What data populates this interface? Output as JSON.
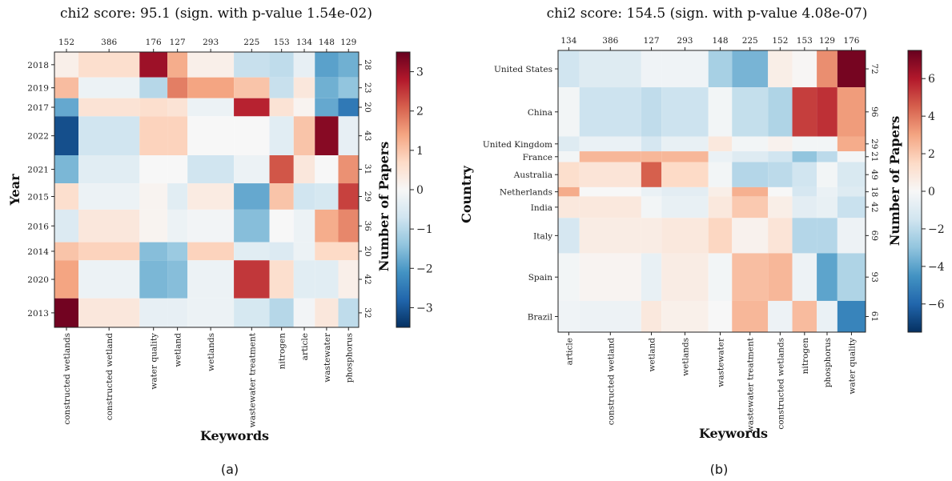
{
  "chart_data": [
    {
      "type": "heatmap",
      "panel": "(a)",
      "title": "chi2 score: 95.1 (sign. with p-value 1.54e-02)",
      "xlabel": "Keywords",
      "ylabel": "Year",
      "cbar_label": "Number of Papers",
      "columns": [
        "constructed wetlands",
        "constructed wetland",
        "water quality",
        "wetland",
        "wetlands",
        "wastewater treatment",
        "nitrogen",
        "article",
        "wastewater",
        "phosphorus"
      ],
      "column_counts": [
        152,
        386,
        176,
        127,
        293,
        225,
        153,
        134,
        148,
        129
      ],
      "rows": [
        "2018",
        "2019",
        "2017",
        "2022",
        "2021",
        "2015",
        "2016",
        "2014",
        "2020",
        "2013"
      ],
      "row_counts": [
        28,
        23,
        20,
        43,
        31,
        29,
        36,
        20,
        42,
        32
      ],
      "colorbar": {
        "min": -3.5,
        "max": 3.5,
        "ticks": [
          -3,
          -2,
          -1,
          0,
          1,
          2,
          3
        ]
      },
      "values": [
        [
          0.2,
          0.6,
          3.0,
          1.3,
          0.2,
          -0.8,
          -0.9,
          -0.3,
          -1.9,
          -1.7
        ],
        [
          1.1,
          -0.2,
          -1.0,
          1.8,
          1.4,
          1.0,
          -0.8,
          0.4,
          -1.7,
          -1.4
        ],
        [
          -1.8,
          0.5,
          0.6,
          0.5,
          -0.2,
          2.7,
          0.5,
          0.1,
          -1.8,
          -2.5
        ],
        [
          -3.1,
          -0.7,
          0.8,
          0.8,
          0.0,
          0.0,
          -0.4,
          1.0,
          3.2,
          -0.3
        ],
        [
          -1.6,
          -0.4,
          0.0,
          0.0,
          -0.7,
          -0.2,
          2.2,
          0.4,
          0.0,
          1.6
        ],
        [
          0.6,
          -0.2,
          0.1,
          -0.4,
          0.3,
          -1.8,
          1.0,
          -0.7,
          -0.6,
          2.4
        ],
        [
          -0.5,
          0.4,
          0.1,
          -0.2,
          -0.1,
          -1.5,
          0.0,
          -0.2,
          1.3,
          1.7
        ],
        [
          1.0,
          0.8,
          -1.5,
          -1.3,
          0.8,
          -0.4,
          -0.5,
          -0.2,
          0.7,
          0.7
        ],
        [
          1.4,
          -0.2,
          -1.6,
          -1.5,
          -0.2,
          2.5,
          0.6,
          -0.4,
          -0.4,
          0.2
        ],
        [
          3.4,
          0.4,
          -0.3,
          -0.3,
          -0.2,
          -0.6,
          -1.0,
          -0.1,
          0.4,
          -0.9
        ]
      ]
    },
    {
      "type": "heatmap",
      "panel": "(b)",
      "title": "chi2 score: 154.5 (sign. with p-value 4.08e-07)",
      "xlabel": "Keywords",
      "ylabel": "Country",
      "cbar_label": "Number of Papers",
      "columns": [
        "article",
        "constructed wetland",
        "wetland",
        "wetlands",
        "wastewater",
        "wastewater treatment",
        "constructed wetlands",
        "nitrogen",
        "phosphorus",
        "water quality"
      ],
      "column_counts": [
        134,
        386,
        127,
        293,
        148,
        225,
        152,
        153,
        129,
        176
      ],
      "rows": [
        "United States",
        "China",
        "United Kingdom",
        "France",
        "Australia",
        "Netherlands",
        "India",
        "Italy",
        "Spain",
        "Brazil"
      ],
      "row_counts": [
        72,
        96,
        29,
        21,
        49,
        18,
        42,
        69,
        93,
        61
      ],
      "colorbar": {
        "min": -7.5,
        "max": 7.5,
        "ticks": [
          -6,
          -4,
          -2,
          0,
          2,
          4,
          6
        ]
      },
      "values": [
        [
          -1.5,
          -1.0,
          -0.3,
          -0.3,
          -2.5,
          -3.5,
          0.5,
          0.1,
          3.5,
          7.2
        ],
        [
          -0.2,
          -1.6,
          -1.9,
          -1.6,
          -0.2,
          -1.8,
          -2.3,
          5.2,
          5.5,
          3.2
        ],
        [
          -1.0,
          -0.5,
          -1.3,
          -0.6,
          0.8,
          -0.2,
          0.3,
          -0.2,
          -0.2,
          2.8
        ],
        [
          -0.2,
          2.5,
          2.5,
          2.5,
          -0.5,
          -1.0,
          -1.5,
          -3.0,
          -2.0,
          -0.2
        ],
        [
          1.3,
          1.0,
          4.5,
          1.5,
          -0.2,
          -2.2,
          -2.0,
          -1.5,
          -0.2,
          -1.2
        ],
        [
          2.8,
          0.0,
          -0.5,
          -0.8,
          0.5,
          2.7,
          0.0,
          -1.3,
          -0.5,
          -1.0
        ],
        [
          0.8,
          0.8,
          -0.2,
          -0.6,
          0.8,
          2.0,
          0.5,
          -0.8,
          -0.6,
          -1.7
        ],
        [
          -1.3,
          0.6,
          0.6,
          0.8,
          1.6,
          0.3,
          1.0,
          -2.2,
          -2.2,
          -0.4
        ],
        [
          -0.2,
          0.2,
          -0.6,
          0.6,
          -0.2,
          2.3,
          2.5,
          -0.4,
          -4.0,
          -2.3
        ],
        [
          -0.3,
          -0.4,
          0.8,
          0.4,
          0.0,
          2.5,
          -0.4,
          2.4,
          -0.5,
          -5.0
        ]
      ]
    }
  ],
  "captions": [
    "(a)",
    "(b)"
  ]
}
